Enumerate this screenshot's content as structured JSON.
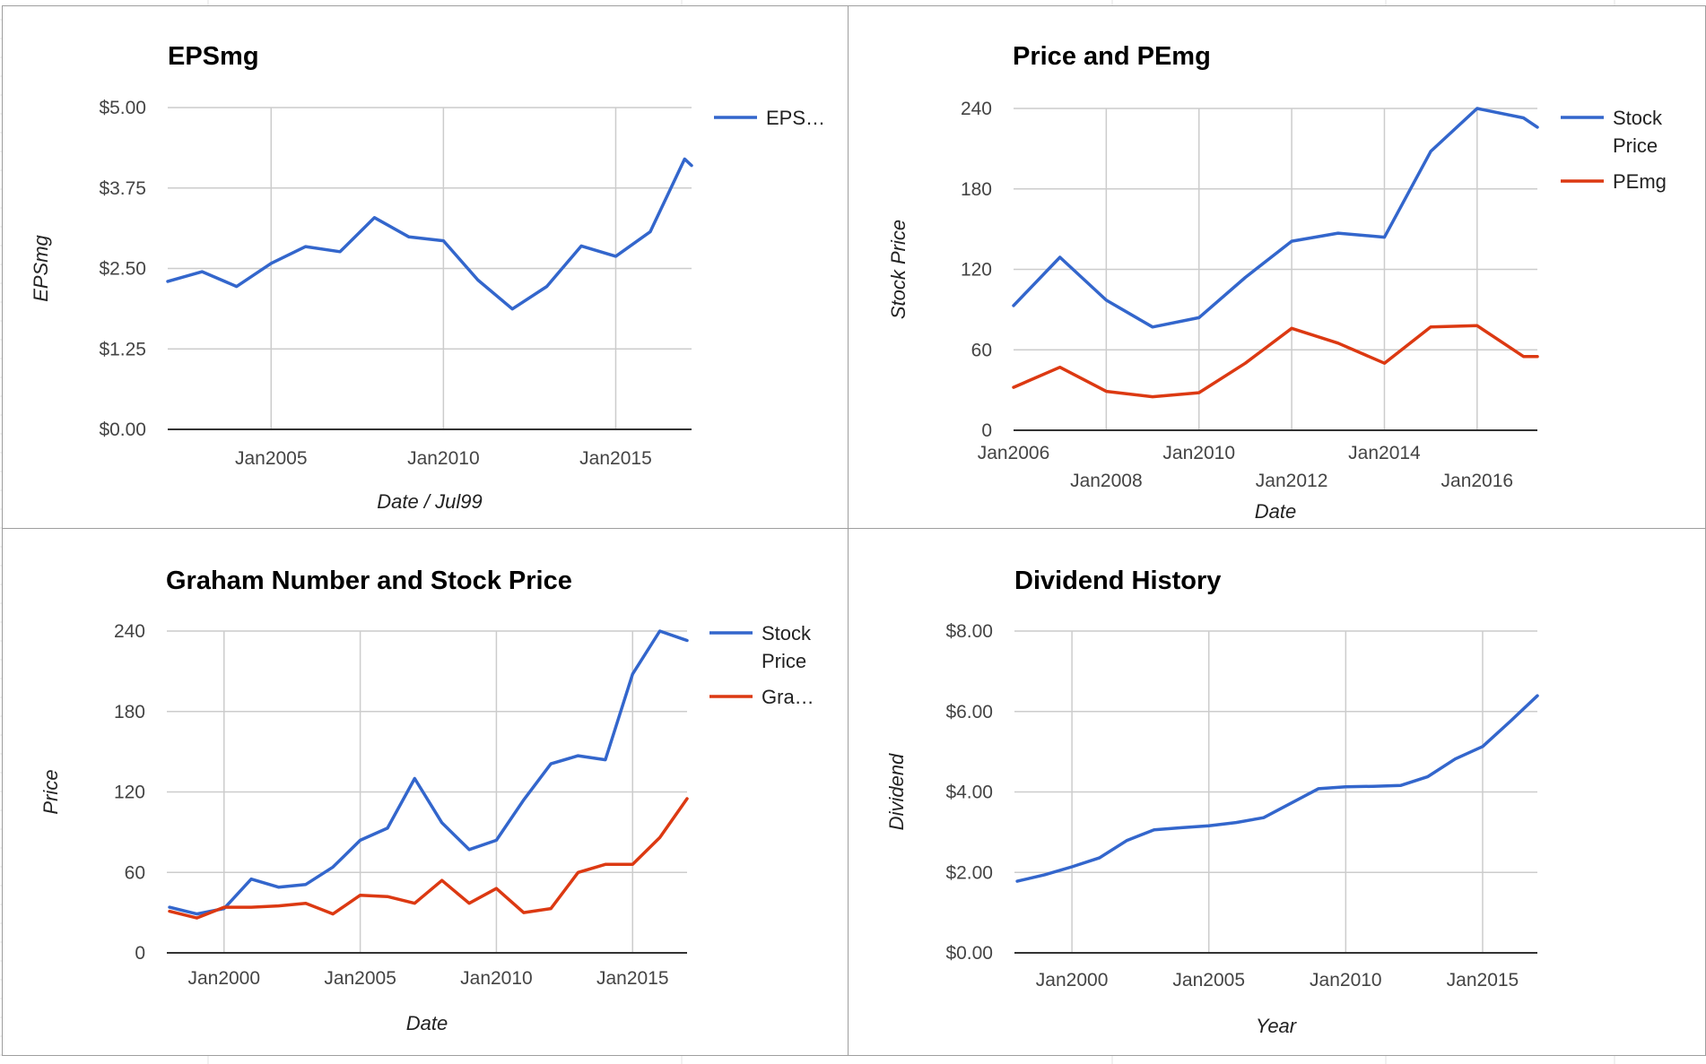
{
  "colors": {
    "blue": "#3366cc",
    "red": "#dc3912",
    "grid": "#cccccc",
    "baseline": "#333333",
    "sheet_grid": "#e3e3e3"
  },
  "chart_data": [
    {
      "id": "epsmg",
      "type": "line",
      "title": "EPSmg",
      "xlabel": "Date / Jul99",
      "ylabel": "EPSmg",
      "x_axis": "date",
      "xlim": [
        2002.0,
        2017.2
      ],
      "x_ticks": [
        {
          "value": 2005,
          "label": "Jan2005"
        },
        {
          "value": 2010,
          "label": "Jan2010"
        },
        {
          "value": 2015,
          "label": "Jan2015"
        }
      ],
      "ylim": [
        0,
        5
      ],
      "y_ticks": [
        {
          "value": 0,
          "label": "$0.00"
        },
        {
          "value": 1.25,
          "label": "$1.25"
        },
        {
          "value": 2.5,
          "label": "$2.50"
        },
        {
          "value": 3.75,
          "label": "$3.75"
        },
        {
          "value": 5,
          "label": "$5.00"
        }
      ],
      "grid": true,
      "legend_position": "right",
      "series": [
        {
          "name": "EPS…",
          "color": "blue",
          "x": [
            2002.0,
            2003.0,
            2004.0,
            2005.0,
            2006.0,
            2007.0,
            2008.0,
            2009.0,
            2010.0,
            2011.0,
            2012.0,
            2013.0,
            2014.0,
            2015.0,
            2016.0,
            2017.0,
            2017.2
          ],
          "values": [
            2.3,
            2.45,
            2.22,
            2.58,
            2.84,
            2.76,
            3.29,
            2.99,
            2.93,
            2.32,
            1.87,
            2.22,
            2.85,
            2.69,
            3.07,
            4.2,
            4.1
          ]
        }
      ]
    },
    {
      "id": "price-pemg",
      "type": "line",
      "title": "Price and PEmg",
      "xlabel": "Date",
      "ylabel": "Stock Price",
      "x_axis": "date",
      "xlim": [
        2006.0,
        2017.3
      ],
      "x_ticks": [
        {
          "value": 2006,
          "label": "Jan2006",
          "row": 0
        },
        {
          "value": 2008,
          "label": "Jan2008",
          "row": 1
        },
        {
          "value": 2010,
          "label": "Jan2010",
          "row": 0
        },
        {
          "value": 2012,
          "label": "Jan2012",
          "row": 1
        },
        {
          "value": 2014,
          "label": "Jan2014",
          "row": 0
        },
        {
          "value": 2016,
          "label": "Jan2016",
          "row": 1
        }
      ],
      "ylim": [
        0,
        240
      ],
      "y_ticks": [
        {
          "value": 0,
          "label": "0"
        },
        {
          "value": 60,
          "label": "60"
        },
        {
          "value": 120,
          "label": "120"
        },
        {
          "value": 180,
          "label": "180"
        },
        {
          "value": 240,
          "label": "240"
        }
      ],
      "grid": true,
      "legend_position": "right",
      "series": [
        {
          "name": "Stock Price",
          "name_lines": [
            "Stock",
            "Price"
          ],
          "color": "blue",
          "x": [
            2006.0,
            2007.0,
            2008.0,
            2009.0,
            2010.0,
            2011.0,
            2012.0,
            2013.0,
            2014.0,
            2015.0,
            2016.0,
            2017.0,
            2017.3
          ],
          "values": [
            93,
            129,
            97,
            77,
            84,
            114,
            141,
            147,
            144,
            208,
            240,
            233,
            226
          ]
        },
        {
          "name": "PEmg",
          "name_lines": [
            "PEmg"
          ],
          "color": "red",
          "x": [
            2006.0,
            2007.0,
            2008.0,
            2009.0,
            2010.0,
            2011.0,
            2012.0,
            2013.0,
            2014.0,
            2015.0,
            2016.0,
            2017.0,
            2017.3
          ],
          "values": [
            32,
            47,
            29,
            25,
            28,
            50,
            76,
            65,
            50,
            77,
            78,
            55,
            55
          ]
        }
      ]
    },
    {
      "id": "graham",
      "type": "line",
      "title": "Graham Number and Stock Price",
      "xlabel": "Date",
      "ylabel": "Price",
      "x_axis": "date",
      "xlim": [
        1997.9,
        2017.0
      ],
      "x_ticks": [
        {
          "value": 2000,
          "label": "Jan2000"
        },
        {
          "value": 2005,
          "label": "Jan2005"
        },
        {
          "value": 2010,
          "label": "Jan2010"
        },
        {
          "value": 2015,
          "label": "Jan2015"
        }
      ],
      "ylim": [
        0,
        240
      ],
      "y_ticks": [
        {
          "value": 0,
          "label": "0"
        },
        {
          "value": 60,
          "label": "60"
        },
        {
          "value": 120,
          "label": "120"
        },
        {
          "value": 180,
          "label": "180"
        },
        {
          "value": 240,
          "label": "240"
        }
      ],
      "grid": true,
      "legend_position": "right",
      "series": [
        {
          "name": "Stock Price",
          "name_lines": [
            "Stock",
            "Price"
          ],
          "color": "blue",
          "x": [
            1998.0,
            1999.0,
            2000.0,
            2001.0,
            2002.0,
            2003.0,
            2004.0,
            2005.0,
            2006.0,
            2007.0,
            2008.0,
            2009.0,
            2010.0,
            2011.0,
            2012.0,
            2013.0,
            2014.0,
            2015.0,
            2016.0,
            2017.0
          ],
          "values": [
            34,
            29,
            33,
            55,
            49,
            51,
            64,
            84,
            93,
            130,
            97,
            77,
            84,
            114,
            141,
            147,
            144,
            208,
            240,
            233
          ]
        },
        {
          "name": "Gra…",
          "name_lines": [
            "Gra…"
          ],
          "color": "red",
          "x": [
            1998.0,
            1999.0,
            2000.0,
            2001.0,
            2002.0,
            2003.0,
            2004.0,
            2005.0,
            2006.0,
            2007.0,
            2008.0,
            2009.0,
            2010.0,
            2011.0,
            2012.0,
            2013.0,
            2014.0,
            2015.0,
            2016.0,
            2017.0
          ],
          "values": [
            31,
            26,
            34,
            34,
            35,
            37,
            29,
            43,
            42,
            37,
            54,
            37,
            48,
            30,
            33,
            60,
            66,
            66,
            86,
            115
          ]
        }
      ]
    },
    {
      "id": "dividend",
      "type": "line",
      "title": "Dividend History",
      "xlabel": "Year",
      "ylabel": "Dividend",
      "x_axis": "date",
      "xlim": [
        1997.9,
        2017.0
      ],
      "x_ticks": [
        {
          "value": 2000,
          "label": "Jan2000"
        },
        {
          "value": 2005,
          "label": "Jan2005"
        },
        {
          "value": 2010,
          "label": "Jan2010"
        },
        {
          "value": 2015,
          "label": "Jan2015"
        }
      ],
      "ylim": [
        0,
        8
      ],
      "y_ticks": [
        {
          "value": 0,
          "label": "$0.00"
        },
        {
          "value": 2,
          "label": "$2.00"
        },
        {
          "value": 4,
          "label": "$4.00"
        },
        {
          "value": 6,
          "label": "$6.00"
        },
        {
          "value": 8,
          "label": "$8.00"
        }
      ],
      "grid": true,
      "legend_position": "none",
      "series": [
        {
          "name": "",
          "color": "blue",
          "x": [
            1998.0,
            1999.0,
            2000.0,
            2001.0,
            2002.0,
            2003.0,
            2004.0,
            2005.0,
            2006.0,
            2007.0,
            2008.0,
            2009.0,
            2010.0,
            2011.0,
            2012.0,
            2013.0,
            2014.0,
            2015.0,
            2016.0,
            2017.0
          ],
          "values": [
            1.78,
            1.94,
            2.14,
            2.36,
            2.79,
            3.06,
            3.11,
            3.16,
            3.24,
            3.36,
            3.72,
            4.08,
            4.13,
            4.14,
            4.16,
            4.38,
            4.82,
            5.13,
            5.75,
            6.39
          ]
        }
      ]
    }
  ]
}
